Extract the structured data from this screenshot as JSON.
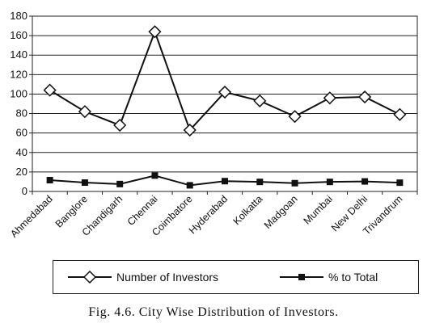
{
  "chart_data": {
    "type": "line",
    "categories": [
      "Ahmedabad",
      "Banglore",
      "Chandigarh",
      "Chennai",
      "Coimbatore",
      "Hyderabad",
      "Kolkatta",
      "Madgoan",
      "Mumbai",
      "New Delhi",
      "Trivandrum"
    ],
    "series": [
      {
        "name": "Number of Investors",
        "values": [
          104,
          82,
          68,
          164,
          63,
          102,
          93,
          77,
          96,
          97,
          79
        ],
        "marker": "diamond-open",
        "color": "#111111"
      },
      {
        "name": "% to Total",
        "values": [
          11.6,
          9.1,
          7.6,
          16.3,
          6.3,
          10.6,
          9.8,
          8.5,
          9.8,
          10.3,
          9.0
        ],
        "marker": "square-filled",
        "color": "#111111"
      }
    ],
    "yticks": [
      "0",
      "20",
      "40",
      "60",
      "80",
      "100",
      "120",
      "140",
      "160",
      "180"
    ],
    "ylim": [
      0,
      180
    ],
    "grid": true,
    "legend_position": "bottom"
  },
  "caption": "Fig. 4.6. City Wise Distribution of Investors."
}
